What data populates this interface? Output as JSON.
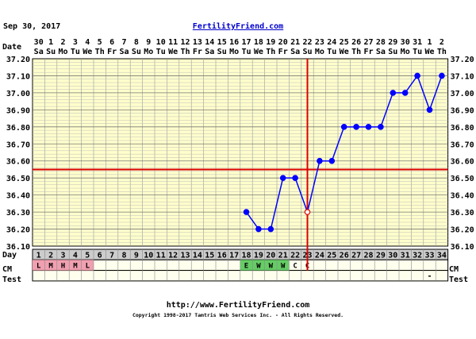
{
  "header": {
    "date_text": "Sep 30, 2017",
    "site_link": "FertilityFriend.com"
  },
  "footer": {
    "url": "http://www.FertilityFriend.com",
    "copyright": "Copyright 1998-2017 Tamtris Web Services Inc. - All Rights Reserved."
  },
  "row_labels": {
    "date": "Date",
    "day": "Day",
    "cm": "CM",
    "test": "Test"
  },
  "colors": {
    "grid_bg": "#ffffcc",
    "gridline": "#999999",
    "temp_line": "#0000ff",
    "coverline": "#dd0000",
    "ovulation_line": "#dd0000",
    "menses": "#f0a0b0",
    "fertile_cm": "#66cc66",
    "day_row_bg": "#cccccc"
  },
  "chart_data": {
    "type": "line",
    "ylabel_left": "",
    "ylim": [
      36.1,
      37.2
    ],
    "yticks": [
      "36.10",
      "36.20",
      "36.30",
      "36.40",
      "36.50",
      "36.60",
      "36.70",
      "36.80",
      "36.90",
      "37.00",
      "37.10",
      "37.20"
    ],
    "date_numbers": [
      "30",
      "1",
      "2",
      "3",
      "4",
      "5",
      "6",
      "7",
      "8",
      "9",
      "10",
      "11",
      "12",
      "13",
      "14",
      "15",
      "16",
      "17",
      "18",
      "19",
      "20",
      "21",
      "22",
      "23",
      "24",
      "25",
      "26",
      "27",
      "28",
      "29",
      "30",
      "31",
      "1",
      "2"
    ],
    "weekdays": [
      "Sa",
      "Su",
      "Mo",
      "Tu",
      "We",
      "Th",
      "Fr",
      "Sa",
      "Su",
      "Mo",
      "Tu",
      "We",
      "Th",
      "Fr",
      "Sa",
      "Su",
      "Mo",
      "Tu",
      "We",
      "Th",
      "Fr",
      "Sa",
      "Su",
      "Mo",
      "Tu",
      "We",
      "Th",
      "Fr",
      "Sa",
      "Su",
      "Mo",
      "Tu",
      "We",
      "Th"
    ],
    "cycle_days": [
      "1",
      "2",
      "3",
      "4",
      "5",
      "6",
      "7",
      "8",
      "9",
      "10",
      "11",
      "12",
      "13",
      "14",
      "15",
      "16",
      "17",
      "18",
      "19",
      "20",
      "21",
      "22",
      "23",
      "24",
      "25",
      "26",
      "27",
      "28",
      "29",
      "30",
      "31",
      "32",
      "33",
      "34"
    ],
    "series": [
      {
        "x": [
          18,
          19,
          20,
          21,
          22,
          23,
          24,
          25,
          26,
          27,
          28,
          29,
          30,
          31,
          32,
          33,
          34
        ],
        "y": [
          36.3,
          36.2,
          36.2,
          36.5,
          36.5,
          36.3,
          36.6,
          36.6,
          36.8,
          36.8,
          36.8,
          36.8,
          37.0,
          37.0,
          37.1,
          36.9,
          37.1
        ]
      }
    ],
    "open_circle_days": [
      23
    ],
    "coverline": 36.55,
    "ovulation_day": 23,
    "cm_row": [
      {
        "day": 1,
        "code": "L",
        "kind": "menses"
      },
      {
        "day": 2,
        "code": "M",
        "kind": "menses"
      },
      {
        "day": 3,
        "code": "H",
        "kind": "menses"
      },
      {
        "day": 4,
        "code": "M",
        "kind": "menses"
      },
      {
        "day": 5,
        "code": "L",
        "kind": "menses"
      },
      {
        "day": 18,
        "code": "E",
        "kind": "fertile"
      },
      {
        "day": 19,
        "code": "W",
        "kind": "fertile"
      },
      {
        "day": 20,
        "code": "W",
        "kind": "fertile"
      },
      {
        "day": 21,
        "code": "W",
        "kind": "fertile"
      },
      {
        "day": 22,
        "code": "C",
        "kind": "plain"
      },
      {
        "day": 23,
        "code": "C",
        "kind": "plain"
      }
    ],
    "test_row": [
      {
        "day": 33,
        "code": "-"
      }
    ]
  }
}
